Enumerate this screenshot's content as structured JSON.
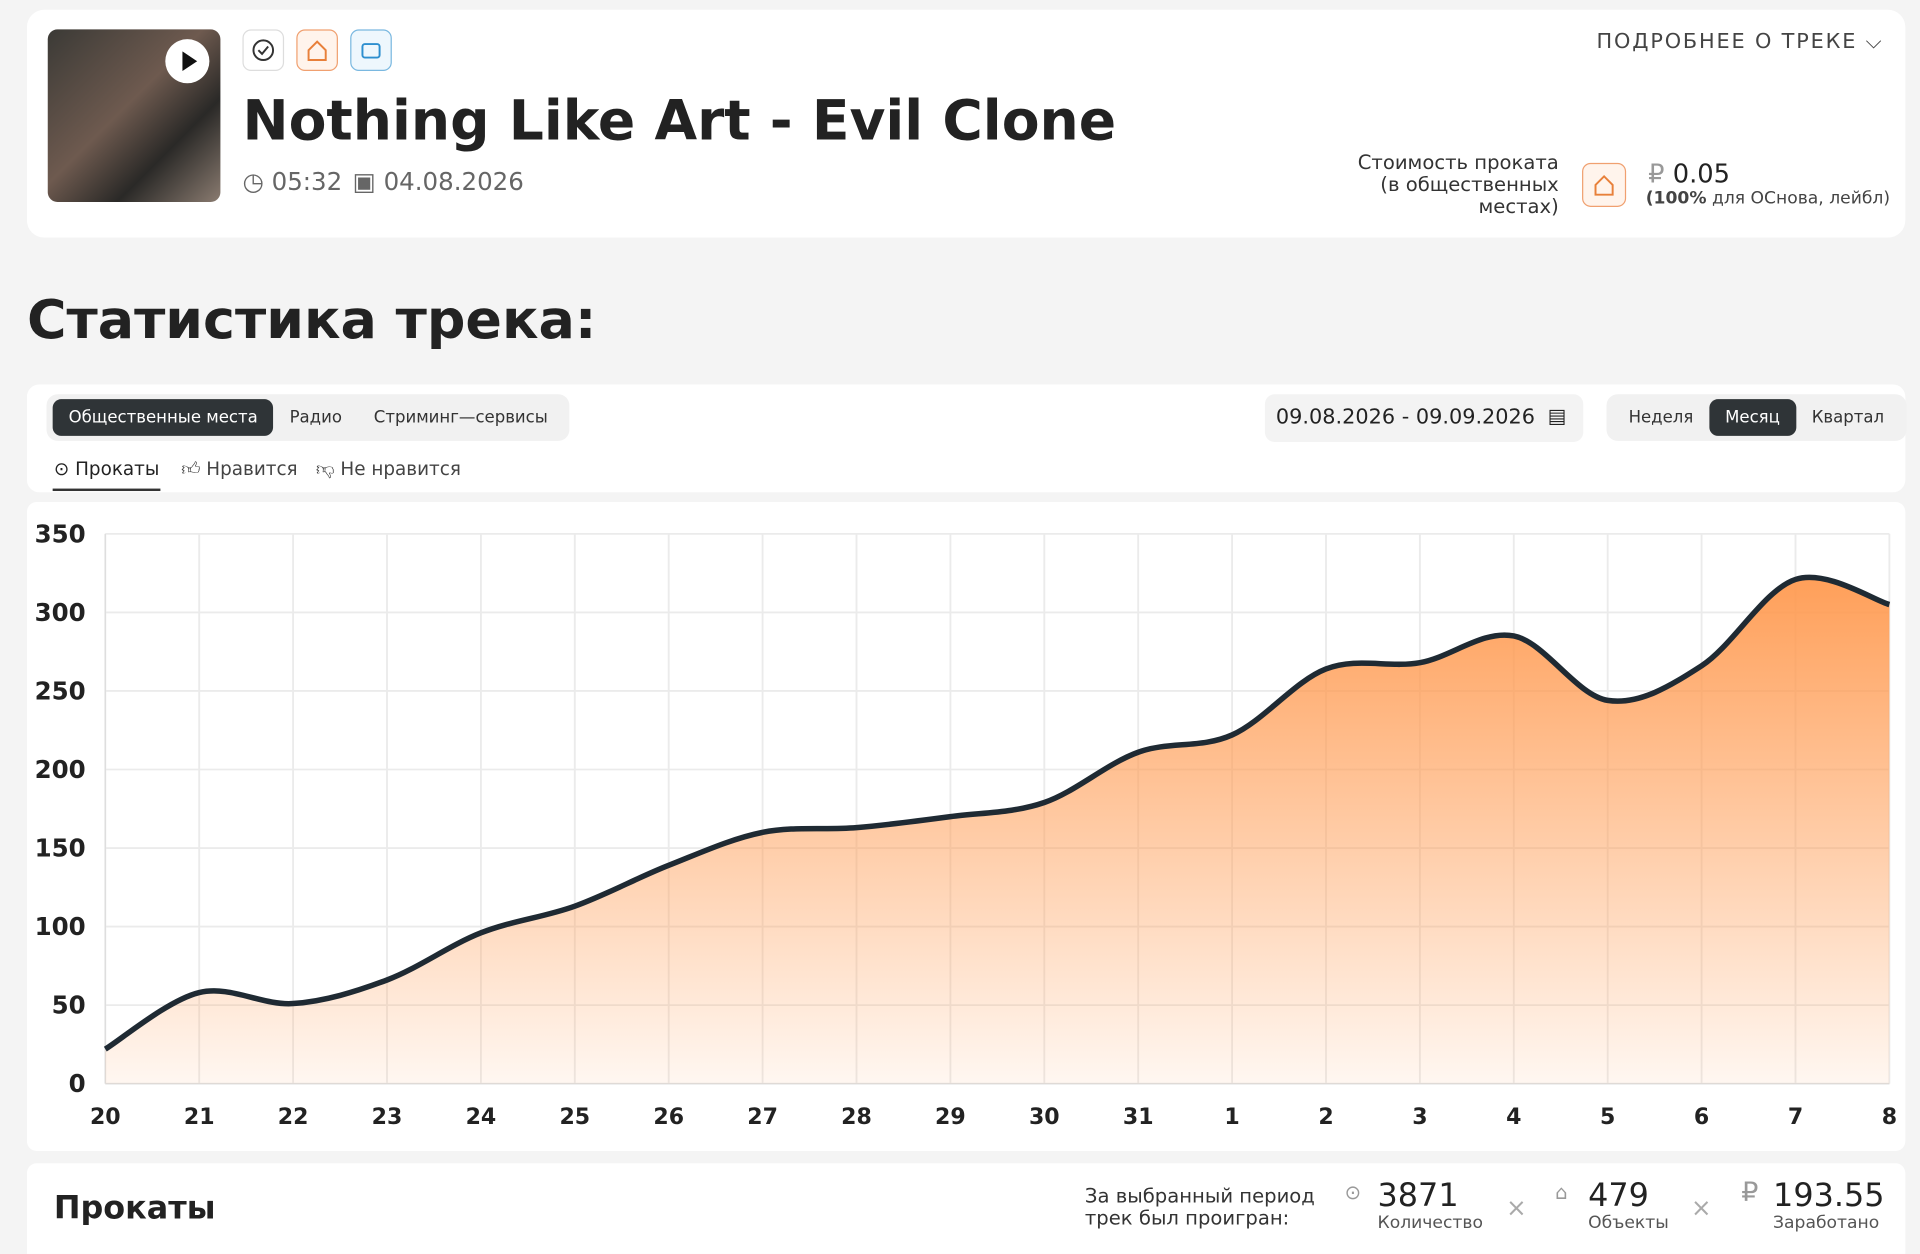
{
  "header": {
    "title": "Nothing Like Art - Evil Clone",
    "duration": "05:32",
    "date": "04.08.2026",
    "details_link": "ПОДРОБНЕЕ О ТРЕКЕ",
    "price_label": "Стоимость проката (в общественных местах)",
    "currency": "₽",
    "price": "0.05",
    "price_note_bold": "(100%",
    "price_note": "для ОСнова, лейбл)"
  },
  "section_title": "Статистика трека:",
  "source_tabs": [
    "Общественные места",
    "Радио",
    "Стриминг—сервисы"
  ],
  "date_range": "09.08.2026 - 09.09.2026",
  "period_tabs": [
    "Неделя",
    "Месяц",
    "Квартал"
  ],
  "metric_tabs": [
    "Прокаты",
    "Нравится",
    "Не нравится"
  ],
  "chart_data": {
    "type": "area",
    "categories": [
      "20",
      "21",
      "22",
      "23",
      "24",
      "25",
      "26",
      "27",
      "28",
      "29",
      "30",
      "31",
      "1",
      "2",
      "3",
      "4",
      "5",
      "6",
      "7",
      "8"
    ],
    "values": [
      22,
      58,
      51,
      66,
      96,
      113,
      139,
      160,
      163,
      170,
      179,
      211,
      222,
      264,
      268,
      285,
      244,
      266,
      321,
      305
    ],
    "color": "#1f2a33",
    "fill": "#ff9a50",
    "ylim": [
      0,
      350
    ],
    "yticks": [
      0,
      50,
      100,
      150,
      200,
      250,
      300,
      350
    ],
    "grid": true
  },
  "footer": {
    "title": "Прокаты",
    "summary": "За выбранный период трек был проигран:",
    "stats": [
      {
        "value": 3871,
        "label": "Количество"
      },
      {
        "value": 479,
        "label": "Объекты"
      },
      {
        "value": 193.55,
        "label": "Заработано"
      }
    ]
  }
}
